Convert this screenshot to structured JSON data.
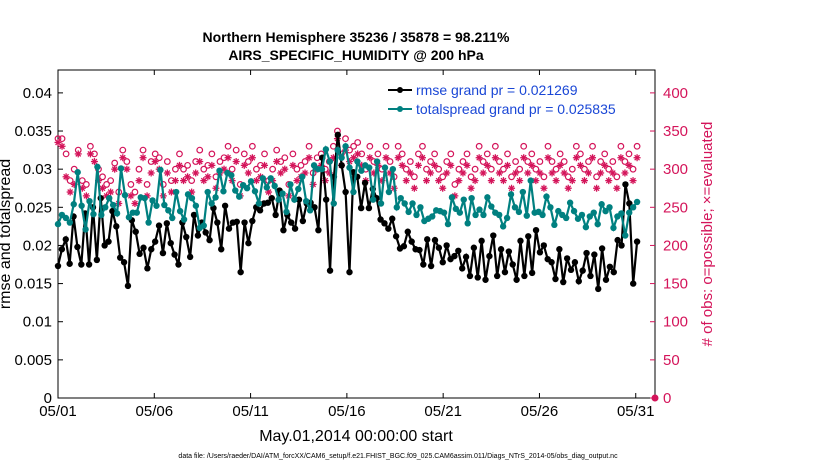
{
  "chart_data": {
    "type": "line",
    "title": "Northern Hemisphere 35236 / 35878 = 98.211%",
    "subtitle": "AIRS_SPECIFIC_HUMIDITY @ 200 hPa",
    "xlabel": "May.01,2014 00:00:00 start",
    "ylabel": "rmse and totalspread",
    "y2label": "# of obs: o=possible; ×=evaluated",
    "footnote": "data file: /Users/raeder/DAI/ATM_forcXX/CAM6_setup/f.e21.FHIST_BGC.f09_025.CAM6assim.011/Diags_NTrS_2014-05/obs_diag_output.nc",
    "xlim": [
      1,
      32
    ],
    "ylim": [
      0,
      0.043
    ],
    "y2lim": [
      0,
      430
    ],
    "grid": false,
    "legend_position": "top-right",
    "x_ticks": [
      1,
      6,
      11,
      16,
      21,
      26,
      31
    ],
    "x_tick_labels": [
      "05/01",
      "05/06",
      "05/11",
      "05/16",
      "05/21",
      "05/26",
      "05/31"
    ],
    "y_ticks": [
      "0",
      "0.005",
      "0.01",
      "0.015",
      "0.02",
      "0.025",
      "0.03",
      "0.035",
      "0.04"
    ],
    "y2_ticks": [
      "0",
      "50",
      "100",
      "150",
      "200",
      "250",
      "300",
      "350",
      "400"
    ],
    "series": [
      {
        "name": "rmse grand pr = 0.021269",
        "color": "#000000",
        "axis": "left",
        "values": [
          0.0173,
          0.0195,
          0.0208,
          0.0176,
          0.0238,
          0.0198,
          0.0175,
          0.0242,
          0.0175,
          0.025,
          0.0181,
          0.0262,
          0.02,
          0.0205,
          0.0245,
          0.0225,
          0.0184,
          0.0178,
          0.0147,
          0.0233,
          0.0218,
          0.0189,
          0.0197,
          0.017,
          0.0195,
          0.0205,
          0.0226,
          0.019,
          0.0229,
          0.0203,
          0.0188,
          0.0175,
          0.023,
          0.0211,
          0.0185,
          0.024,
          0.0213,
          0.023,
          0.0217,
          0.0207,
          0.0249,
          0.023,
          0.0195,
          0.0252,
          0.0222,
          0.023,
          0.0231,
          0.0165,
          0.023,
          0.0203,
          0.0232,
          0.025,
          0.0246,
          0.0255,
          0.0256,
          0.0262,
          0.024,
          0.0272,
          0.022,
          0.024,
          0.023,
          0.0222,
          0.026,
          0.0232,
          0.0255,
          0.0256,
          0.025,
          0.022,
          0.0315,
          0.026,
          0.0167,
          0.029,
          0.0345,
          0.0305,
          0.027,
          0.0165,
          0.0296,
          0.029,
          0.0249,
          0.0282,
          0.0249,
          0.0274,
          0.0262,
          0.0234,
          0.0229,
          0.0222,
          0.0235,
          0.0212,
          0.0196,
          0.0199,
          0.0218,
          0.0205,
          0.0195,
          0.0194,
          0.0175,
          0.0208,
          0.0173,
          0.0207,
          0.0197,
          0.0178,
          0.02,
          0.0182,
          0.0186,
          0.0193,
          0.017,
          0.0185,
          0.016,
          0.0197,
          0.0158,
          0.0206,
          0.0155,
          0.0186,
          0.0213,
          0.016,
          0.0195,
          0.0165,
          0.0192,
          0.0175,
          0.0155,
          0.0206,
          0.016,
          0.0212,
          0.0164,
          0.022,
          0.0191,
          0.02,
          0.0182,
          0.0178,
          0.0156,
          0.0195,
          0.0152,
          0.0183,
          0.0168,
          0.0178,
          0.0153,
          0.0167,
          0.019,
          0.016,
          0.0188,
          0.0143,
          0.0196,
          0.0155,
          0.0172,
          0.0165,
          0.0207,
          0.02,
          0.028,
          0.0255,
          0.015,
          0.0205
        ]
      },
      {
        "name": "totalspread grand pr = 0.025835",
        "color": "#008080",
        "axis": "left",
        "values": [
          0.0228,
          0.024,
          0.0236,
          0.023,
          0.0254,
          0.0296,
          0.0252,
          0.0221,
          0.0258,
          0.0241,
          0.0303,
          0.024,
          0.025,
          0.0262,
          0.0253,
          0.0242,
          0.0301,
          0.0266,
          0.0237,
          0.0243,
          0.0243,
          0.0263,
          0.0262,
          0.023,
          0.0259,
          0.0252,
          0.0299,
          0.0253,
          0.0246,
          0.0236,
          0.027,
          0.0245,
          0.0234,
          0.0267,
          0.0262,
          0.0252,
          0.0223,
          0.0226,
          0.027,
          0.0255,
          0.0263,
          0.0298,
          0.0271,
          0.0295,
          0.0292,
          0.0272,
          0.0264,
          0.0279,
          0.0275,
          0.0284,
          0.0271,
          0.0255,
          0.0288,
          0.0276,
          0.0288,
          0.0278,
          0.026,
          0.0268,
          0.0244,
          0.028,
          0.026,
          0.0274,
          0.029,
          0.0258,
          0.0246,
          0.0305,
          0.03,
          0.03,
          0.0326,
          0.031,
          0.0255,
          0.0325,
          0.0315,
          0.033,
          0.0302,
          0.027,
          0.031,
          0.0298,
          0.0305,
          0.0302,
          0.026,
          0.031,
          0.0255,
          0.0302,
          0.027,
          0.03,
          0.025,
          0.0262,
          0.0255,
          0.0244,
          0.0255,
          0.024,
          0.025,
          0.0232,
          0.0235,
          0.0238,
          0.0246,
          0.0245,
          0.0243,
          0.0228,
          0.0263,
          0.0248,
          0.0243,
          0.026,
          0.0229,
          0.0262,
          0.024,
          0.0247,
          0.024,
          0.0263,
          0.0251,
          0.0243,
          0.024,
          0.0225,
          0.0236,
          0.0267,
          0.025,
          0.0244,
          0.027,
          0.0239,
          0.0285,
          0.0243,
          0.0244,
          0.024,
          0.0264,
          0.025,
          0.0227,
          0.0245,
          0.024,
          0.0236,
          0.0256,
          0.0245,
          0.0235,
          0.024,
          0.0224,
          0.0238,
          0.0243,
          0.0228,
          0.0254,
          0.0245,
          0.025,
          0.0223,
          0.0238,
          0.0242,
          0.0213,
          0.0243,
          0.025,
          0.0257
        ]
      },
      {
        "name": "possible",
        "marker": "circle",
        "color": "#d4145a",
        "axis": "right",
        "values": [
          340,
          340,
          320,
          285,
          300,
          325,
          285,
          280,
          330,
          320,
          300,
          290,
          280,
          285,
          308,
          270,
          325,
          310,
          280,
          270,
          300,
          325,
          280,
          310,
          320,
          315,
          280,
          310,
          285,
          300,
          320,
          300,
          305,
          285,
          310,
          325,
          300,
          305,
          320,
          290,
          310,
          315,
          330,
          300,
          325,
          280,
          320,
          310,
          330,
          300,
          305,
          320,
          285,
          300,
          325,
          310,
          315,
          280,
          320,
          300,
          305,
          310,
          330,
          295,
          315,
          320,
          300,
          310,
          330,
          350,
          320,
          340,
          325,
          330,
          335,
          320,
          300,
          330,
          310,
          320,
          300,
          330,
          310,
          290,
          330,
          320,
          300,
          310,
          290,
          320,
          330,
          300,
          310,
          320,
          300,
          290,
          310,
          320,
          280,
          300,
          310,
          320,
          290,
          300,
          330,
          310,
          320,
          300,
          330,
          310,
          300,
          320,
          290,
          310,
          300,
          330,
          310,
          320,
          300,
          310,
          290,
          330,
          310,
          300,
          320,
          310,
          290,
          300,
          330,
          320,
          300,
          310,
          330,
          290,
          310,
          320,
          300,
          310,
          290,
          330,
          310,
          320,
          300,
          330
        ]
      },
      {
        "name": "evaluated",
        "marker": "asterisk",
        "color": "#d4145a",
        "axis": "right",
        "values": [
          335,
          330,
          290,
          270,
          280,
          320,
          275,
          265,
          320,
          310,
          285,
          275,
          265,
          270,
          300,
          255,
          315,
          300,
          265,
          255,
          285,
          315,
          265,
          295,
          310,
          300,
          265,
          295,
          270,
          285,
          305,
          285,
          290,
          270,
          295,
          310,
          285,
          290,
          305,
          275,
          295,
          300,
          315,
          285,
          310,
          265,
          305,
          295,
          315,
          285,
          290,
          305,
          270,
          285,
          310,
          295,
          300,
          265,
          305,
          285,
          290,
          295,
          315,
          280,
          300,
          305,
          285,
          295,
          315,
          340,
          305,
          325,
          310,
          315,
          320,
          305,
          285,
          315,
          295,
          305,
          285,
          315,
          295,
          275,
          315,
          305,
          285,
          295,
          275,
          305,
          315,
          285,
          295,
          305,
          285,
          275,
          295,
          305,
          265,
          285,
          295,
          305,
          275,
          285,
          315,
          295,
          305,
          285,
          315,
          295,
          285,
          305,
          275,
          295,
          285,
          315,
          295,
          305,
          285,
          295,
          275,
          315,
          295,
          285,
          305,
          295,
          275,
          285,
          315,
          305,
          285,
          295,
          315,
          275,
          295,
          305,
          285,
          295,
          275,
          315,
          295,
          305,
          285,
          315
        ]
      }
    ]
  }
}
